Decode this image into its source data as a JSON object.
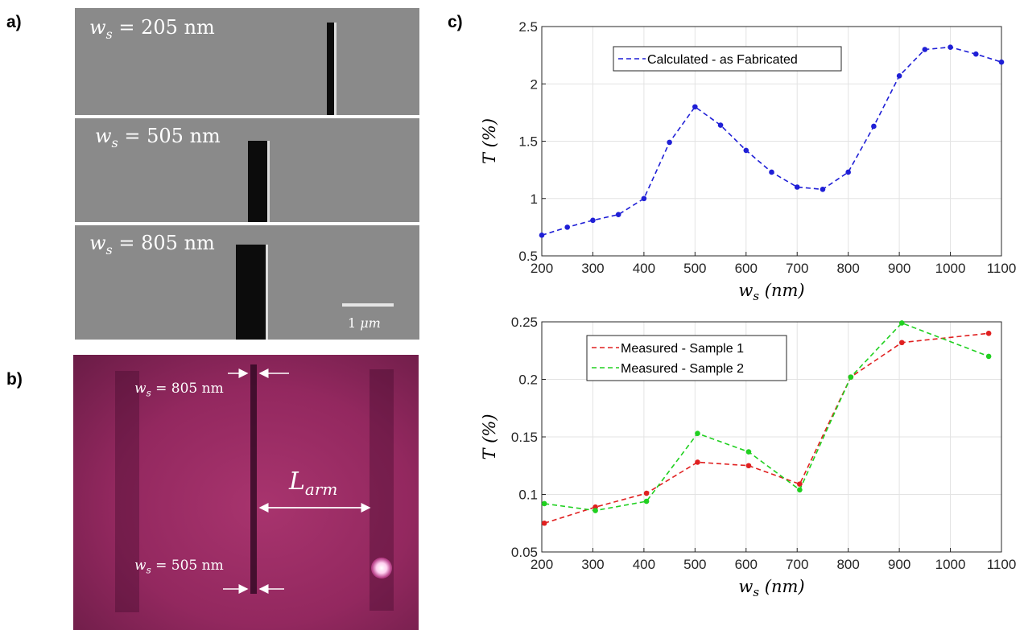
{
  "panels": {
    "a": "a)",
    "b": "b)",
    "c": "c)"
  },
  "sem": {
    "images": [
      {
        "var": "w",
        "sub": "s",
        "eq": " = 205 nm"
      },
      {
        "var": "w",
        "sub": "s",
        "eq": " = 505 nm"
      },
      {
        "var": "w",
        "sub": "s",
        "eq": " = 805 nm"
      }
    ],
    "scale_value": "1 ",
    "scale_unit": "μm"
  },
  "optical": {
    "top_label": {
      "var": "w",
      "sub": "s",
      "eq": " = 805 nm"
    },
    "bottom_label": {
      "var": "w",
      "sub": "s",
      "eq": " = 505 nm"
    },
    "arm_label": {
      "var": "L",
      "sub": "arm"
    }
  },
  "chart_data": [
    {
      "type": "line",
      "xlabel_var": "w",
      "xlabel_sub": "s",
      "xlabel_unit": "(nm)",
      "ylabel": "T (%)",
      "xlim": [
        200,
        1100
      ],
      "ylim": [
        0.5,
        2.5
      ],
      "xticks": [
        200,
        300,
        400,
        500,
        600,
        700,
        800,
        900,
        1000,
        1100
      ],
      "yticks": [
        0.5,
        1,
        1.5,
        2,
        2.5
      ],
      "ytick_labels": [
        "0.5",
        "1",
        "1.5",
        "2",
        "2.5"
      ],
      "grid": true,
      "legend_position": "top-left",
      "series": [
        {
          "name": "Calculated - as Fabricated",
          "color": "#1f1fd6",
          "x": [
            200,
            250,
            300,
            350,
            400,
            450,
            500,
            550,
            600,
            650,
            700,
            750,
            800,
            850,
            900,
            950,
            1000,
            1050,
            1100
          ],
          "y": [
            0.68,
            0.75,
            0.81,
            0.86,
            1.0,
            1.49,
            1.8,
            1.64,
            1.42,
            1.23,
            1.1,
            1.08,
            1.23,
            1.63,
            2.07,
            2.3,
            2.32,
            2.26,
            2.19
          ]
        }
      ]
    },
    {
      "type": "line",
      "xlabel_var": "w",
      "xlabel_sub": "s",
      "xlabel_unit": "(nm)",
      "ylabel": "T (%)",
      "xlim": [
        200,
        1100
      ],
      "ylim": [
        0.05,
        0.25
      ],
      "xticks": [
        200,
        300,
        400,
        500,
        600,
        700,
        800,
        900,
        1000,
        1100
      ],
      "yticks": [
        0.05,
        0.1,
        0.15,
        0.2,
        0.25
      ],
      "ytick_labels": [
        "0.05",
        "0.1",
        "0.15",
        "0.2",
        "0.25"
      ],
      "grid": true,
      "legend_position": "top-left",
      "series": [
        {
          "name": "Measured - Sample 1",
          "color": "#e02020",
          "x": [
            205,
            305,
            405,
            505,
            605,
            705,
            805,
            905,
            1075
          ],
          "y": [
            0.075,
            0.089,
            0.101,
            0.128,
            0.125,
            0.109,
            0.202,
            0.232,
            0.24
          ]
        },
        {
          "name": "Measured - Sample 2",
          "color": "#20d020",
          "x": [
            205,
            305,
            405,
            505,
            605,
            705,
            805,
            905,
            1075
          ],
          "y": [
            0.092,
            0.086,
            0.094,
            0.153,
            0.137,
            0.104,
            0.202,
            0.249,
            0.22
          ]
        }
      ]
    }
  ]
}
